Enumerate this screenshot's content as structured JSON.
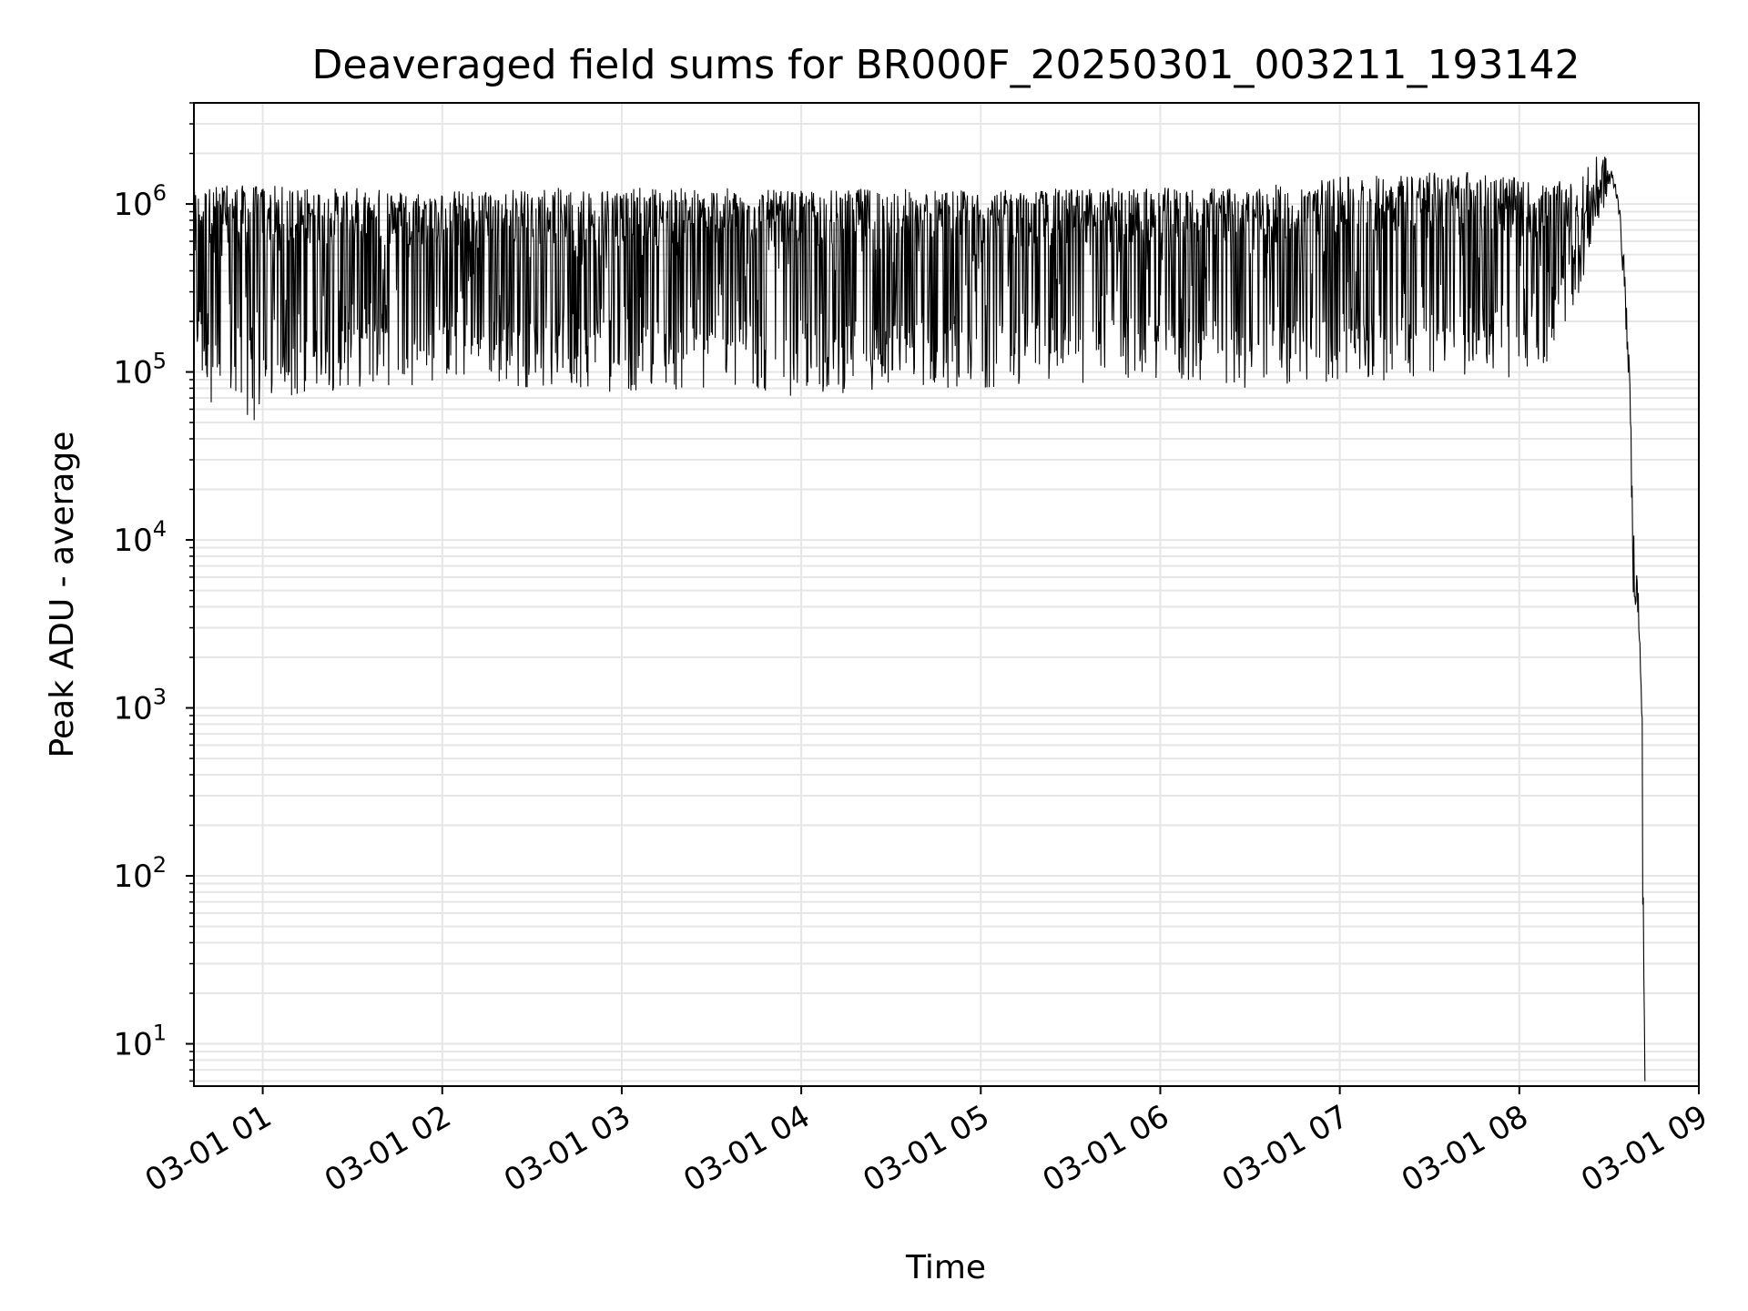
{
  "chart_data": {
    "type": "line",
    "title": "Deaveraged field sums for BR000F_20250301_003211_193142",
    "xlabel": "Time",
    "ylabel": "Peak ADU - average",
    "yscale": "log",
    "grid": true,
    "x_ticks": [
      "03-01 01",
      "03-01 02",
      "03-01 03",
      "03-01 04",
      "03-01 05",
      "03-01 06",
      "03-01 07",
      "03-01 08",
      "03-01 09"
    ],
    "x_range": [
      "2025-03-01 00:37",
      "2025-03-01 09:00"
    ],
    "y_ticks": [
      {
        "base": "10",
        "exp": "1",
        "value": 10
      },
      {
        "base": "10",
        "exp": "2",
        "value": 100
      },
      {
        "base": "10",
        "exp": "3",
        "value": 1000
      },
      {
        "base": "10",
        "exp": "4",
        "value": 10000
      },
      {
        "base": "10",
        "exp": "5",
        "value": 100000
      },
      {
        "base": "10",
        "exp": "6",
        "value": 1000000
      }
    ],
    "ylim": [
      5.6,
      4000000
    ],
    "line_color": "#000000",
    "series": [
      {
        "x": [
          "2025-03-01 00:37",
          "2025-03-01 00:45",
          "2025-03-01 01:00",
          "2025-03-01 01:15",
          "2025-03-01 01:30",
          "2025-03-01 02:00",
          "2025-03-01 02:30",
          "2025-03-01 03:00",
          "2025-03-01 03:30",
          "2025-03-01 04:00",
          "2025-03-01 04:30",
          "2025-03-01 05:00",
          "2025-03-01 05:30",
          "2025-03-01 06:00",
          "2025-03-01 06:30",
          "2025-03-01 07:00",
          "2025-03-01 07:30",
          "2025-03-01 07:50",
          "2025-03-01 08:00",
          "2025-03-01 08:10",
          "2025-03-01 08:20",
          "2025-03-01 08:28",
          "2025-03-01 08:31",
          "2025-03-01 08:33",
          "2025-03-01 08:35",
          "2025-03-01 08:37",
          "2025-03-01 08:38",
          "2025-03-01 08:40",
          "2025-03-01 08:41",
          "2025-03-01 08:42"
        ],
        "y_max": [
          1200000,
          1300000,
          1300000,
          1250000,
          1250000,
          1200000,
          1250000,
          1250000,
          1250000,
          1200000,
          1250000,
          1200000,
          1250000,
          1250000,
          1250000,
          1450000,
          1550000,
          1600000,
          1400000,
          1300000,
          1500000,
          2100000,
          1600000,
          1200000,
          500000,
          90000,
          14000,
          5000,
          1300,
          6
        ],
        "y_min": [
          100000,
          55000,
          48000,
          70000,
          80000,
          85000,
          80000,
          75000,
          75000,
          70000,
          80000,
          80000,
          85000,
          85000,
          80000,
          85000,
          90000,
          100000,
          80000,
          100000,
          300000,
          900000,
          1300000,
          1000000,
          300000,
          60000,
          5000,
          2500,
          150,
          6
        ]
      }
    ]
  }
}
